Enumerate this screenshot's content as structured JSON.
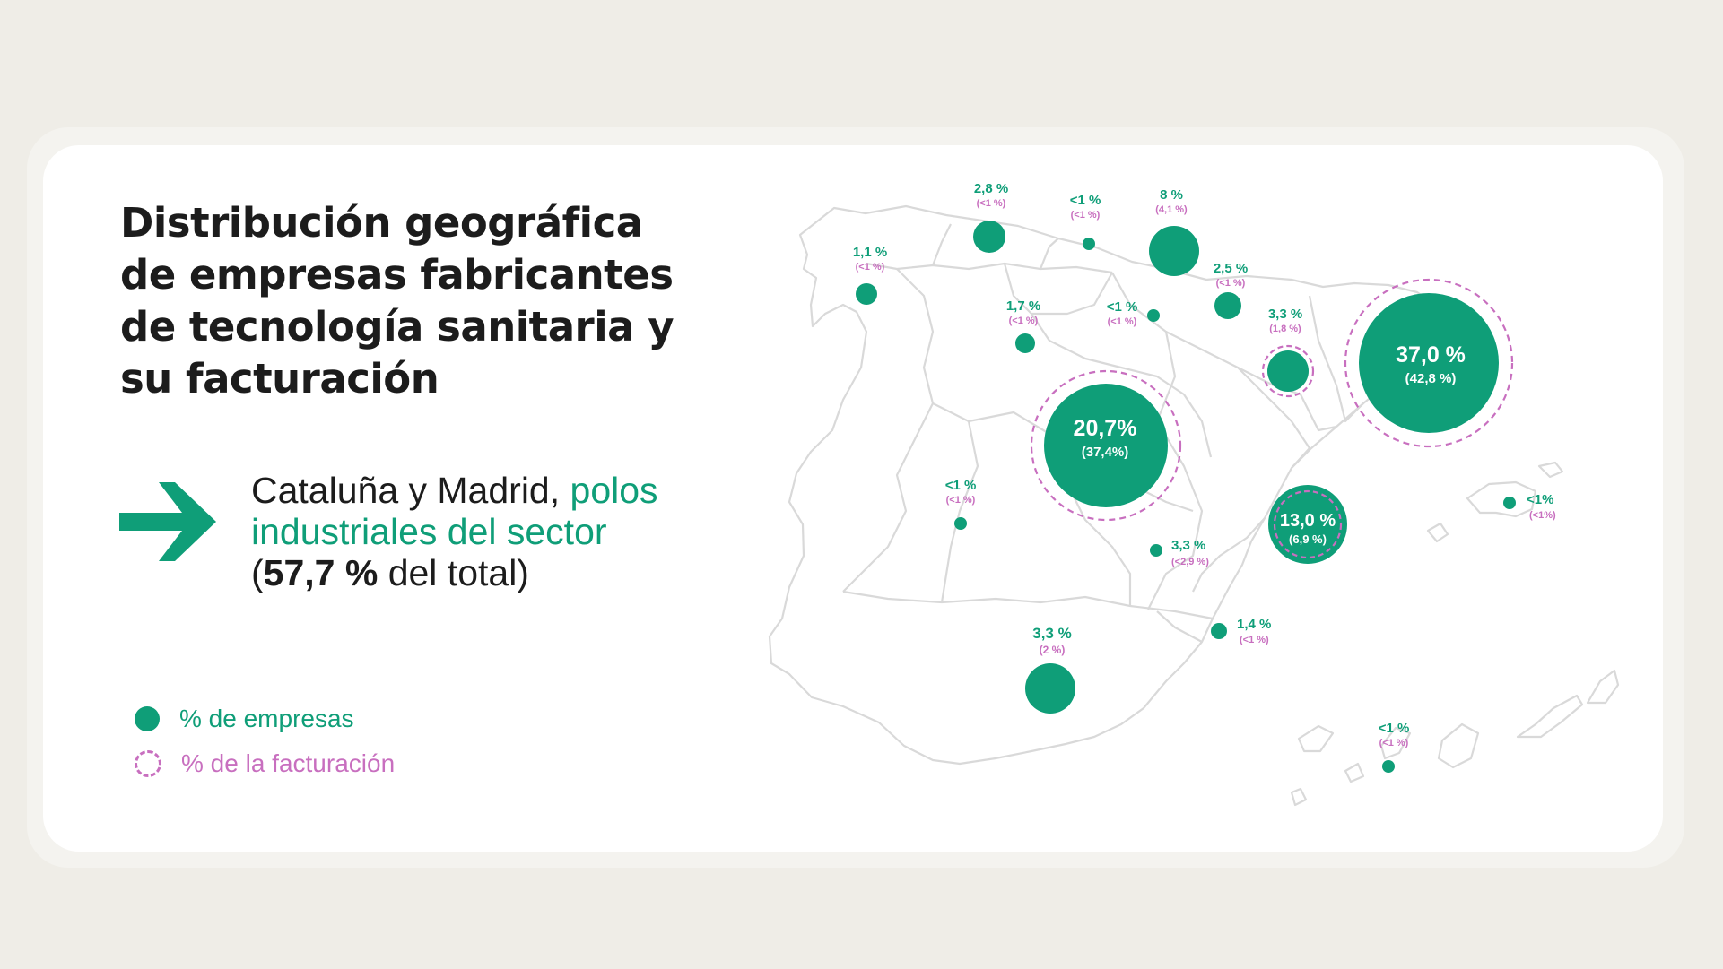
{
  "title": "Distribución geográfica de empresas fabricantes de tecnología sanitaria y su facturación",
  "highlight": {
    "part1": "Cataluña y Madrid, ",
    "part2": "polos industriales del sector",
    "part3a": "(",
    "part3b": "57,7 %",
    "part3c": " del total)"
  },
  "legend": {
    "companies": "% de empresas",
    "revenue": "% de la facturación"
  },
  "colors": {
    "companies": "#0f9e78",
    "revenue": "#c86fbf",
    "outline": "#d9d9d9"
  },
  "regions": [
    {
      "region": "Galicia",
      "companies": "1,1 %",
      "revenue": "(<1 %)"
    },
    {
      "region": "Asturias",
      "companies": "2,8 %",
      "revenue": "(<1 %)"
    },
    {
      "region": "Cantabria",
      "companies": "<1 %",
      "revenue": "(<1 %)"
    },
    {
      "region": "País Vasco",
      "companies": "8 %",
      "revenue": "(4,1 %)"
    },
    {
      "region": "Navarra",
      "companies": "2,5 %",
      "revenue": "(<1 %)"
    },
    {
      "region": "Castilla y León",
      "companies": "1,7 %",
      "revenue": "(<1 %)"
    },
    {
      "region": "La Rioja",
      "companies": "<1 %",
      "revenue": "(<1 %)"
    },
    {
      "region": "Aragón",
      "companies": "3,3 %",
      "revenue": "(1,8 %)"
    },
    {
      "region": "Cataluña",
      "companies": "37,0 %",
      "revenue": "(42,8 %)"
    },
    {
      "region": "Madrid",
      "companies": "20,7%",
      "revenue": "(37,4%)"
    },
    {
      "region": "Extremadura",
      "companies": "<1 %",
      "revenue": "(<1 %)"
    },
    {
      "region": "Castilla-La Mancha",
      "companies": "3,3 %",
      "revenue": "(<2,9 %)"
    },
    {
      "region": "Comunidad Valenciana",
      "companies": "13,0 %",
      "revenue": "(6,9 %)"
    },
    {
      "region": "Baleares",
      "companies": "<1%",
      "revenue": "(<1%)"
    },
    {
      "region": "Murcia",
      "companies": "1,4 %",
      "revenue": "(<1 %)"
    },
    {
      "region": "Andalucía",
      "companies": "3,3 %",
      "revenue": "(2 %)"
    },
    {
      "region": "Canarias",
      "companies": "<1 %",
      "revenue": "(<1 %)"
    }
  ]
}
